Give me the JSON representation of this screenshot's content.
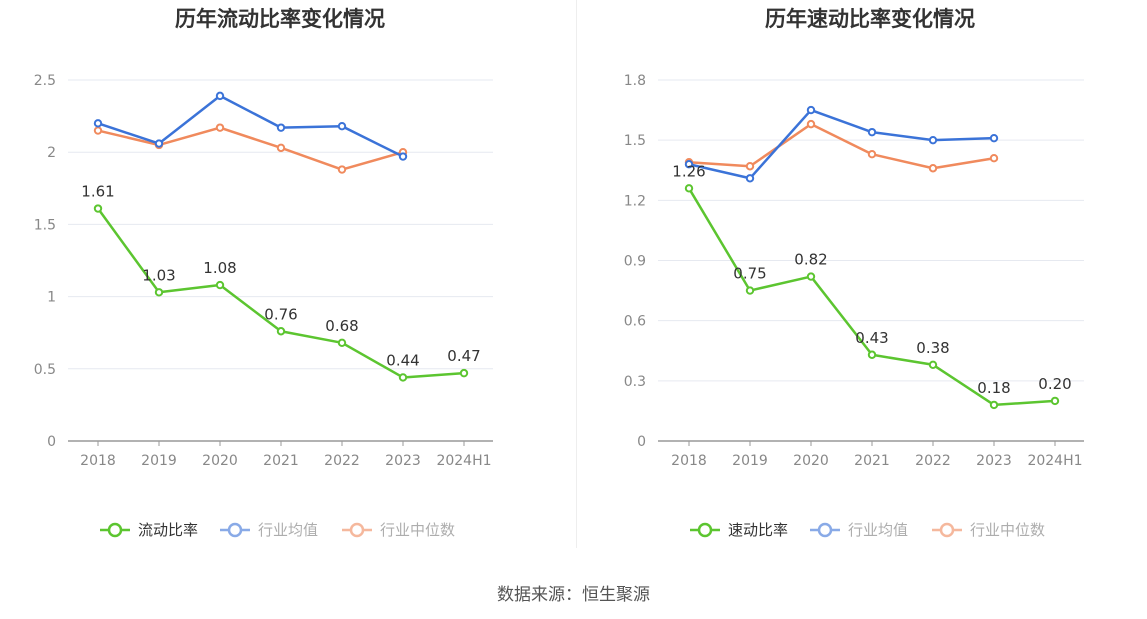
{
  "source_label": "数据来源：恒生聚源",
  "colors": {
    "main": "#5cc530",
    "avg": "#3b73d8",
    "median": "#f08a5d",
    "grid": "#e6e9f0",
    "axis": "#999999",
    "tick": "#888888",
    "label": "#333333",
    "title": "#333333"
  },
  "chart_data": [
    {
      "type": "line",
      "title": "历年流动比率变化情况",
      "categories": [
        "2018",
        "2019",
        "2020",
        "2021",
        "2022",
        "2023",
        "2024H1"
      ],
      "ylim": [
        0,
        2.5
      ],
      "yticks": [
        "0",
        "0.5",
        "1",
        "1.5",
        "2",
        "2.5"
      ],
      "grid": true,
      "legend_position": "bottom",
      "series": [
        {
          "name": "流动比率",
          "color_key": "main",
          "labels": true,
          "values": [
            1.61,
            1.03,
            1.08,
            0.76,
            0.68,
            0.44,
            0.47
          ],
          "value_labels": [
            "1.61",
            "1.03",
            "1.08",
            "0.76",
            "0.68",
            "0.44",
            "0.47"
          ]
        },
        {
          "name": "行业均值",
          "color_key": "avg",
          "labels": false,
          "values": [
            2.2,
            2.06,
            2.39,
            2.17,
            2.18,
            1.97,
            null
          ]
        },
        {
          "name": "行业中位数",
          "color_key": "median",
          "labels": false,
          "values": [
            2.15,
            2.05,
            2.17,
            2.03,
            1.88,
            2.0,
            null
          ]
        }
      ]
    },
    {
      "type": "line",
      "title": "历年速动比率变化情况",
      "categories": [
        "2018",
        "2019",
        "2020",
        "2021",
        "2022",
        "2023",
        "2024H1"
      ],
      "ylim": [
        0,
        1.8
      ],
      "yticks": [
        "0",
        "0.3",
        "0.6",
        "0.9",
        "1.2",
        "1.5",
        "1.8"
      ],
      "grid": true,
      "legend_position": "bottom",
      "series": [
        {
          "name": "速动比率",
          "color_key": "main",
          "labels": true,
          "values": [
            1.26,
            0.75,
            0.82,
            0.43,
            0.38,
            0.18,
            0.2
          ],
          "value_labels": [
            "1.26",
            "0.75",
            "0.82",
            "0.43",
            "0.38",
            "0.18",
            "0.20"
          ]
        },
        {
          "name": "行业均值",
          "color_key": "avg",
          "labels": false,
          "values": [
            1.38,
            1.31,
            1.65,
            1.54,
            1.5,
            1.51,
            null
          ]
        },
        {
          "name": "行业中位数",
          "color_key": "median",
          "labels": false,
          "values": [
            1.39,
            1.37,
            1.58,
            1.43,
            1.36,
            1.41,
            null
          ]
        }
      ]
    }
  ]
}
